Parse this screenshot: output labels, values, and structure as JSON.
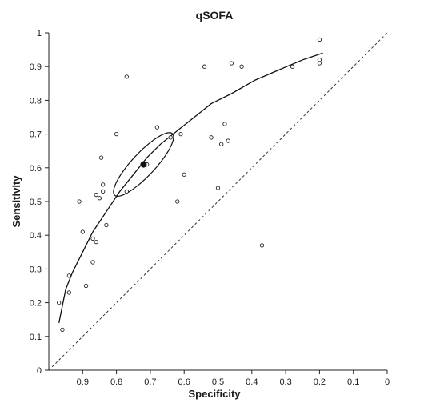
{
  "chart_data": {
    "type": "scatter",
    "title": "qSOFA",
    "xlabel": "Specificity",
    "ylabel": "Sensitivity",
    "x_reversed": true,
    "xlim": [
      1,
      0
    ],
    "ylim": [
      0,
      1
    ],
    "x_tick_values": [
      0.9,
      0.8,
      0.7,
      0.6,
      0.5,
      0.4,
      0.3,
      0.2,
      0.1,
      0
    ],
    "x_tick_labels": [
      "0.9",
      "0.8",
      "0.7",
      "0.6",
      "0.5",
      "0.4",
      "0.3",
      "0.2",
      "0.1",
      "0"
    ],
    "y_tick_values": [
      0,
      0.1,
      0.2,
      0.3,
      0.4,
      0.5,
      0.6,
      0.7,
      0.8,
      0.9,
      1
    ],
    "y_tick_labels": [
      "0",
      "0.1",
      "0.2",
      "0.3",
      "0.4",
      "0.5",
      "0.6",
      "0.7",
      "0.8",
      "0.9",
      "1"
    ],
    "grid": false,
    "legend": "none",
    "studies": [
      {
        "x": 0.97,
        "y": 0.2
      },
      {
        "x": 0.96,
        "y": 0.12
      },
      {
        "x": 0.94,
        "y": 0.23
      },
      {
        "x": 0.94,
        "y": 0.28
      },
      {
        "x": 0.91,
        "y": 0.5
      },
      {
        "x": 0.9,
        "y": 0.41
      },
      {
        "x": 0.89,
        "y": 0.25
      },
      {
        "x": 0.87,
        "y": 0.32
      },
      {
        "x": 0.87,
        "y": 0.39
      },
      {
        "x": 0.86,
        "y": 0.38
      },
      {
        "x": 0.86,
        "y": 0.52
      },
      {
        "x": 0.85,
        "y": 0.51
      },
      {
        "x": 0.84,
        "y": 0.53
      },
      {
        "x": 0.84,
        "y": 0.55
      },
      {
        "x": 0.845,
        "y": 0.63
      },
      {
        "x": 0.83,
        "y": 0.43
      },
      {
        "x": 0.8,
        "y": 0.7
      },
      {
        "x": 0.77,
        "y": 0.53
      },
      {
        "x": 0.77,
        "y": 0.87
      },
      {
        "x": 0.71,
        "y": 0.61
      },
      {
        "x": 0.68,
        "y": 0.72
      },
      {
        "x": 0.64,
        "y": 0.69
      },
      {
        "x": 0.62,
        "y": 0.5
      },
      {
        "x": 0.61,
        "y": 0.7
      },
      {
        "x": 0.6,
        "y": 0.58
      },
      {
        "x": 0.54,
        "y": 0.9
      },
      {
        "x": 0.52,
        "y": 0.69
      },
      {
        "x": 0.5,
        "y": 0.54
      },
      {
        "x": 0.49,
        "y": 0.67
      },
      {
        "x": 0.48,
        "y": 0.73
      },
      {
        "x": 0.47,
        "y": 0.68
      },
      {
        "x": 0.46,
        "y": 0.91
      },
      {
        "x": 0.43,
        "y": 0.9
      },
      {
        "x": 0.37,
        "y": 0.37
      },
      {
        "x": 0.28,
        "y": 0.9
      },
      {
        "x": 0.2,
        "y": 0.91
      },
      {
        "x": 0.2,
        "y": 0.92
      },
      {
        "x": 0.2,
        "y": 0.98
      }
    ],
    "summary_point": {
      "x": 0.72,
      "y": 0.61
    },
    "sroc_curve": [
      {
        "x": 0.97,
        "y": 0.14
      },
      {
        "x": 0.96,
        "y": 0.19
      },
      {
        "x": 0.95,
        "y": 0.24
      },
      {
        "x": 0.93,
        "y": 0.29
      },
      {
        "x": 0.9,
        "y": 0.35
      },
      {
        "x": 0.87,
        "y": 0.41
      },
      {
        "x": 0.83,
        "y": 0.47
      },
      {
        "x": 0.79,
        "y": 0.53
      },
      {
        "x": 0.75,
        "y": 0.58
      },
      {
        "x": 0.71,
        "y": 0.63
      },
      {
        "x": 0.67,
        "y": 0.67
      },
      {
        "x": 0.62,
        "y": 0.71
      },
      {
        "x": 0.57,
        "y": 0.75
      },
      {
        "x": 0.52,
        "y": 0.79
      },
      {
        "x": 0.46,
        "y": 0.82
      },
      {
        "x": 0.39,
        "y": 0.86
      },
      {
        "x": 0.32,
        "y": 0.89
      },
      {
        "x": 0.25,
        "y": 0.92
      },
      {
        "x": 0.19,
        "y": 0.94
      }
    ],
    "confidence_region": {
      "center": {
        "x": 0.72,
        "y": 0.61
      },
      "semi_major": 0.125,
      "semi_minor": 0.034,
      "angle_deg": 47
    },
    "reference_line": [
      {
        "x": 1,
        "y": 0
      },
      {
        "x": 0,
        "y": 1
      }
    ]
  }
}
